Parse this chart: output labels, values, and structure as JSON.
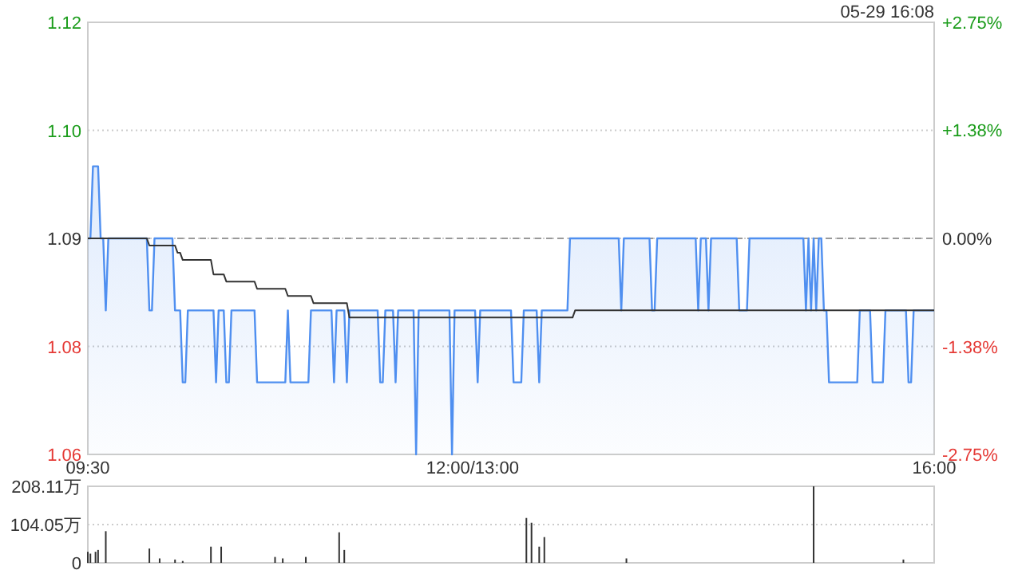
{
  "chart_data": [
    {
      "type": "area",
      "annotations": [
        "05-29 16:08"
      ],
      "categories": [
        "09:30",
        null,
        null,
        null,
        null,
        null,
        null,
        null,
        null,
        null,
        null,
        null,
        null,
        null,
        null,
        null,
        null,
        null,
        null,
        null,
        null,
        null,
        null,
        null,
        null,
        null,
        null,
        null,
        null,
        null,
        null,
        null,
        null,
        null,
        null,
        null,
        null,
        null,
        null,
        null,
        null,
        null,
        null,
        null,
        null,
        null,
        null,
        null,
        null,
        null,
        null,
        null,
        null,
        null,
        null,
        null,
        null,
        null,
        null,
        null,
        null,
        null,
        null,
        null,
        null,
        null,
        null,
        null,
        null,
        null,
        null,
        null,
        null,
        null,
        null,
        null,
        null,
        null,
        null,
        null,
        null,
        null,
        null,
        null,
        null,
        null,
        null,
        null,
        null,
        null,
        null,
        null,
        null,
        null,
        null,
        null,
        null,
        null,
        null,
        null,
        null,
        null,
        null,
        null,
        null,
        null,
        null,
        null,
        null,
        null,
        null,
        null,
        null,
        null,
        null,
        null,
        null,
        null,
        null,
        null,
        null,
        null,
        null,
        null,
        null,
        null,
        null,
        null,
        null,
        null,
        null,
        null,
        null,
        null,
        null,
        null,
        null,
        null,
        null,
        null,
        null,
        null,
        null,
        null,
        null,
        null,
        null,
        null,
        null,
        null,
        "12:00/13:00",
        null,
        null,
        null,
        null,
        null,
        null,
        null,
        null,
        null,
        null,
        null,
        null,
        null,
        null,
        null,
        null,
        null,
        null,
        null,
        null,
        null,
        null,
        null,
        null,
        null,
        null,
        null,
        null,
        null,
        null,
        null,
        null,
        null,
        null,
        null,
        null,
        null,
        null,
        null,
        null,
        null,
        null,
        null,
        null,
        null,
        null,
        null,
        null,
        null,
        null,
        null,
        null,
        null,
        null,
        null,
        null,
        null,
        null,
        null,
        null,
        null,
        null,
        null,
        null,
        null,
        null,
        null,
        null,
        null,
        null,
        null,
        null,
        null,
        null,
        null,
        null,
        null,
        null,
        null,
        null,
        null,
        null,
        null,
        null,
        null,
        null,
        null,
        null,
        null,
        null,
        null,
        null,
        null,
        null,
        null,
        null,
        null,
        null,
        null,
        null,
        null,
        null,
        null,
        null,
        null,
        null,
        null,
        null,
        null,
        null,
        null,
        null,
        null,
        null,
        null,
        null,
        null,
        null,
        null,
        null,
        null,
        null,
        null,
        null,
        null,
        null,
        null,
        null,
        null,
        null,
        null,
        null,
        null,
        null,
        null,
        null,
        null,
        null,
        null,
        null,
        null,
        null,
        null,
        null,
        null,
        null,
        null,
        null,
        null,
        null,
        null,
        null,
        null,
        null,
        null,
        null,
        null,
        null,
        null,
        null,
        null,
        null,
        null,
        null,
        null,
        null,
        null,
        null,
        null,
        null,
        null,
        null,
        null,
        null,
        null,
        null,
        null,
        null,
        null,
        "16:00"
      ],
      "ylim": [
        1.06,
        1.12
      ],
      "yticks": [
        1.12,
        {
          "value": 1.105,
          "label": "1.10"
        },
        1.09,
        {
          "value": 1.075,
          "label": "1.08"
        },
        1.06
      ],
      "y2lim": [
        -2.75,
        2.75
      ],
      "y2ticks": [
        {
          "value": 2.75,
          "label": "+2.75%"
        },
        {
          "value": 1.38,
          "label": "+1.38%"
        },
        {
          "value": 0,
          "label": "0.00%"
        },
        {
          "value": -1.38,
          "label": "-1.38%"
        },
        {
          "value": -2.75,
          "label": "-2.75%"
        }
      ],
      "grid": "y",
      "ref_lines": [
        {
          "axis": "y",
          "value": 1.09,
          "color": "#999999",
          "line_style": "dashed"
        }
      ],
      "series": [
        {
          "color": "#4f8ff0",
          "values": [
            1.09,
            1.09,
            1.1,
            1.1,
            1.1,
            1.09,
            1.09,
            1.08,
            1.09,
            1.09,
            1.09,
            1.09,
            1.09,
            1.09,
            1.09,
            1.09,
            1.09,
            1.09,
            1.09,
            1.09,
            1.09,
            1.09,
            1.09,
            1.09,
            1.08,
            1.08,
            1.09,
            1.09,
            1.09,
            1.09,
            1.09,
            1.09,
            1.09,
            1.09,
            1.08,
            1.08,
            1.08,
            1.07,
            1.07,
            1.08,
            1.08,
            1.08,
            1.08,
            1.08,
            1.08,
            1.08,
            1.08,
            1.08,
            1.08,
            1.08,
            1.07,
            1.08,
            1.08,
            1.08,
            1.07,
            1.07,
            1.08,
            1.08,
            1.08,
            1.08,
            1.08,
            1.08,
            1.08,
            1.08,
            1.08,
            1.08,
            1.07,
            1.07,
            1.07,
            1.07,
            1.07,
            1.07,
            1.07,
            1.07,
            1.07,
            1.07,
            1.07,
            1.07,
            1.08,
            1.07,
            1.07,
            1.07,
            1.07,
            1.07,
            1.07,
            1.07,
            1.07,
            1.08,
            1.08,
            1.08,
            1.08,
            1.08,
            1.08,
            1.08,
            1.08,
            1.08,
            1.07,
            1.08,
            1.08,
            1.08,
            1.08,
            1.07,
            1.08,
            1.08,
            1.08,
            1.08,
            1.08,
            1.08,
            1.08,
            1.08,
            1.08,
            1.08,
            1.08,
            1.08,
            1.07,
            1.07,
            1.08,
            1.08,
            1.08,
            1.08,
            1.07,
            1.08,
            1.08,
            1.08,
            1.08,
            1.08,
            1.08,
            1.08,
            1.06,
            1.08,
            1.08,
            1.08,
            1.08,
            1.08,
            1.08,
            1.08,
            1.08,
            1.08,
            1.08,
            1.08,
            1.08,
            1.08,
            1.06,
            1.08,
            1.08,
            1.08,
            1.08,
            1.08,
            1.08,
            1.08,
            1.08,
            1.08,
            1.07,
            1.08,
            1.08,
            1.08,
            1.08,
            1.08,
            1.08,
            1.08,
            1.08,
            1.08,
            1.08,
            1.08,
            1.08,
            1.08,
            1.07,
            1.07,
            1.07,
            1.07,
            1.08,
            1.08,
            1.08,
            1.08,
            1.08,
            1.08,
            1.07,
            1.08,
            1.08,
            1.08,
            1.08,
            1.08,
            1.08,
            1.08,
            1.08,
            1.08,
            1.08,
            1.08,
            1.09,
            1.09,
            1.09,
            1.09,
            1.09,
            1.09,
            1.09,
            1.09,
            1.09,
            1.09,
            1.09,
            1.09,
            1.09,
            1.09,
            1.09,
            1.09,
            1.09,
            1.09,
            1.09,
            1.09,
            1.08,
            1.09,
            1.09,
            1.09,
            1.09,
            1.09,
            1.09,
            1.09,
            1.09,
            1.09,
            1.09,
            1.09,
            1.08,
            1.08,
            1.09,
            1.09,
            1.09,
            1.09,
            1.09,
            1.09,
            1.09,
            1.09,
            1.09,
            1.09,
            1.09,
            1.09,
            1.09,
            1.09,
            1.09,
            1.09,
            1.08,
            1.09,
            1.09,
            1.09,
            1.08,
            1.09,
            1.09,
            1.09,
            1.09,
            1.09,
            1.09,
            1.09,
            1.09,
            1.09,
            1.09,
            1.09,
            1.08,
            1.08,
            1.08,
            1.08,
            1.09,
            1.09,
            1.09,
            1.09,
            1.09,
            1.09,
            1.09,
            1.09,
            1.09,
            1.09,
            1.09,
            1.09,
            1.09,
            1.09,
            1.09,
            1.09,
            1.09,
            1.09,
            1.09,
            1.09,
            1.09,
            1.09,
            1.08,
            1.09,
            1.08,
            1.09,
            1.08,
            1.09,
            1.09,
            1.08,
            1.08,
            1.07,
            1.07,
            1.07,
            1.07,
            1.07,
            1.07,
            1.07,
            1.07,
            1.07,
            1.07,
            1.07,
            1.07,
            1.08,
            1.08,
            1.08,
            1.08,
            1.08,
            1.07,
            1.07,
            1.07,
            1.07,
            1.07,
            1.08,
            1.08,
            1.08,
            1.08,
            1.08,
            1.08,
            1.08,
            1.08,
            1.08,
            1.07,
            1.07,
            1.08,
            1.08,
            1.08,
            1.08,
            1.08,
            1.08,
            1.08,
            1.08,
            1.08
          ]
        },
        {
          "type": "line",
          "color": "#333333",
          "values": [
            1.09,
            1.09,
            1.09,
            1.09,
            1.09,
            1.09,
            1.09,
            1.09,
            1.09,
            1.09,
            1.09,
            1.09,
            1.09,
            1.09,
            1.09,
            1.09,
            1.09,
            1.09,
            1.09,
            1.09,
            1.09,
            1.09,
            1.09,
            1.09,
            1.089,
            1.089,
            1.089,
            1.089,
            1.089,
            1.089,
            1.089,
            1.089,
            1.089,
            1.089,
            1.089,
            1.088,
            1.088,
            1.087,
            1.087,
            1.087,
            1.087,
            1.087,
            1.087,
            1.087,
            1.087,
            1.087,
            1.087,
            1.087,
            1.087,
            1.085,
            1.085,
            1.085,
            1.085,
            1.085,
            1.084,
            1.084,
            1.084,
            1.084,
            1.084,
            1.084,
            1.084,
            1.084,
            1.084,
            1.084,
            1.084,
            1.084,
            1.083,
            1.083,
            1.083,
            1.083,
            1.083,
            1.083,
            1.083,
            1.083,
            1.083,
            1.083,
            1.083,
            1.083,
            1.082,
            1.082,
            1.082,
            1.082,
            1.082,
            1.082,
            1.082,
            1.082,
            1.082,
            1.082,
            1.081,
            1.081,
            1.081,
            1.081,
            1.081,
            1.081,
            1.081,
            1.081,
            1.081,
            1.081,
            1.081,
            1.081,
            1.081,
            1.081,
            1.079,
            1.079,
            1.079,
            1.079,
            1.079,
            1.079,
            1.079,
            1.079,
            1.079,
            1.079,
            1.079,
            1.079,
            1.079,
            1.079,
            1.079,
            1.079,
            1.079,
            1.079,
            1.079,
            1.079,
            1.079,
            1.079,
            1.079,
            1.079,
            1.079,
            1.079,
            1.079,
            1.079,
            1.079,
            1.079,
            1.079,
            1.079,
            1.079,
            1.079,
            1.079,
            1.079,
            1.079,
            1.079,
            1.079,
            1.079,
            1.079,
            1.079,
            1.079,
            1.079,
            1.079,
            1.079,
            1.079,
            1.079,
            1.079,
            1.079,
            1.079,
            1.079,
            1.079,
            1.079,
            1.079,
            1.079,
            1.079,
            1.079,
            1.079,
            1.079,
            1.079,
            1.079,
            1.079,
            1.079,
            1.079,
            1.079,
            1.079,
            1.079,
            1.079,
            1.079,
            1.079,
            1.079,
            1.079,
            1.079,
            1.079,
            1.079,
            1.079,
            1.079,
            1.079,
            1.079,
            1.079,
            1.079,
            1.079,
            1.079,
            1.079,
            1.079,
            1.079,
            1.079,
            1.08,
            1.08,
            1.08,
            1.08,
            1.08,
            1.08,
            1.08,
            1.08,
            1.08,
            1.08,
            1.08,
            1.08,
            1.08,
            1.08,
            1.08,
            1.08,
            1.08,
            1.08,
            1.08,
            1.08,
            1.08,
            1.08,
            1.08,
            1.08,
            1.08,
            1.08,
            1.08,
            1.08,
            1.08,
            1.08,
            1.08,
            1.08,
            1.08,
            1.08,
            1.08,
            1.08,
            1.08,
            1.08,
            1.08,
            1.08,
            1.08,
            1.08,
            1.08,
            1.08,
            1.08,
            1.08,
            1.08,
            1.08,
            1.08,
            1.08,
            1.08,
            1.08,
            1.08,
            1.08,
            1.08,
            1.08,
            1.08,
            1.08,
            1.08,
            1.08,
            1.08,
            1.08,
            1.08,
            1.08,
            1.08,
            1.08,
            1.08,
            1.08,
            1.08,
            1.08,
            1.08,
            1.08,
            1.08,
            1.08,
            1.08,
            1.08,
            1.08,
            1.08,
            1.08,
            1.08,
            1.08,
            1.08,
            1.08,
            1.08,
            1.08,
            1.08,
            1.08,
            1.08,
            1.08,
            1.08,
            1.08,
            1.08,
            1.08,
            1.08,
            1.08,
            1.08,
            1.08,
            1.08,
            1.08,
            1.08,
            1.08,
            1.08,
            1.08,
            1.08,
            1.08,
            1.08,
            1.08,
            1.08,
            1.08,
            1.08,
            1.08,
            1.08,
            1.08,
            1.08,
            1.08,
            1.08,
            1.08,
            1.08,
            1.08,
            1.08,
            1.08,
            1.08,
            1.08,
            1.08,
            1.08,
            1.08,
            1.08,
            1.08,
            1.08,
            1.08,
            1.08,
            1.08,
            1.08,
            1.08,
            1.08,
            1.08,
            1.08,
            1.08,
            1.08,
            1.08,
            1.08
          ]
        }
      ]
    },
    {
      "type": "bar",
      "tick_labels": "y",
      "categories": [
        null,
        null,
        null,
        null,
        null,
        null,
        null,
        null,
        null,
        null,
        null,
        null,
        null,
        null,
        null,
        null,
        null,
        null,
        null,
        null,
        null,
        null,
        null,
        null,
        null,
        null,
        null,
        null,
        null,
        null,
        null,
        null,
        null,
        null,
        null,
        null,
        null,
        null,
        null,
        null,
        null,
        null,
        null,
        null,
        null,
        null,
        null,
        null,
        null,
        null,
        null,
        null,
        null,
        null,
        null,
        null,
        null,
        null,
        null,
        null,
        null,
        null,
        null,
        null,
        null,
        null,
        null,
        null,
        null,
        null,
        null,
        null,
        null,
        null,
        null,
        null,
        null,
        null,
        null,
        null,
        null,
        null,
        null,
        null,
        null,
        null,
        null,
        null,
        null,
        null,
        null,
        null,
        null,
        null,
        null,
        null,
        null,
        null,
        null,
        null,
        null,
        null,
        null,
        null,
        null,
        null,
        null,
        null,
        null,
        null,
        null,
        null,
        null,
        null,
        null,
        null,
        null,
        null,
        null,
        null,
        null,
        null,
        null,
        null,
        null,
        null,
        null,
        null,
        null,
        null,
        null,
        null,
        null,
        null,
        null,
        null,
        null,
        null,
        null,
        null,
        null,
        null,
        null,
        null,
        null,
        null,
        null,
        null,
        null,
        null,
        null,
        null,
        null,
        null,
        null,
        null,
        null,
        null,
        null,
        null,
        null,
        null,
        null,
        null,
        null,
        null,
        null,
        null,
        null,
        null,
        null,
        null,
        null,
        null,
        null,
        null,
        null,
        null,
        null,
        null,
        null,
        null,
        null,
        null,
        null,
        null,
        null,
        null,
        null,
        null,
        null,
        null,
        null,
        null,
        null,
        null,
        null,
        null,
        null,
        null,
        null,
        null,
        null,
        null,
        null,
        null,
        null,
        null,
        null,
        null,
        null,
        null,
        null,
        null,
        null,
        null,
        null,
        null,
        null,
        null,
        null,
        null,
        null,
        null,
        null,
        null,
        null,
        null,
        null,
        null,
        null,
        null,
        null,
        null,
        null,
        null,
        null,
        null,
        null,
        null,
        null,
        null,
        null,
        null,
        null,
        null,
        null,
        null,
        null,
        null,
        null,
        null,
        null,
        null,
        null,
        null,
        null,
        null,
        null,
        null,
        null,
        null,
        null,
        null,
        null,
        null,
        null,
        null,
        null,
        null,
        null,
        null,
        null,
        null,
        null,
        null,
        null,
        null,
        null,
        null,
        null,
        null,
        null,
        null,
        null,
        null,
        null,
        null,
        null,
        null,
        null,
        null,
        null,
        null,
        null,
        null,
        null,
        null,
        null,
        null,
        null,
        null,
        null,
        null,
        null,
        null,
        null,
        null,
        null,
        null,
        null,
        null,
        null,
        null,
        null,
        null,
        null,
        null,
        null,
        null,
        null,
        null,
        null,
        null,
        null,
        null,
        null,
        null,
        null,
        null,
        null
      ],
      "ylim": [
        0,
        208.11
      ],
      "yticks": [
        0,
        {
          "value": 104.05,
          "label": "104.05万"
        },
        {
          "value": 208.11,
          "label": "208.11万"
        }
      ],
      "grid": "y",
      "series": [
        {
          "color": "#333333",
          "values": [
            30,
            25,
            null,
            30,
            35,
            null,
            null,
            86,
            null,
            null,
            null,
            null,
            null,
            null,
            null,
            null,
            null,
            null,
            null,
            null,
            null,
            null,
            null,
            null,
            39,
            null,
            null,
            null,
            12,
            null,
            null,
            null,
            null,
            null,
            9,
            null,
            null,
            5,
            null,
            null,
            null,
            null,
            null,
            null,
            null,
            null,
            null,
            null,
            44,
            null,
            null,
            null,
            44,
            null,
            null,
            null,
            null,
            null,
            null,
            null,
            null,
            null,
            null,
            null,
            null,
            null,
            null,
            null,
            null,
            null,
            null,
            null,
            null,
            16,
            null,
            null,
            12,
            null,
            null,
            null,
            null,
            null,
            null,
            null,
            null,
            16,
            null,
            null,
            null,
            null,
            null,
            null,
            null,
            null,
            null,
            null,
            null,
            null,
            83,
            null,
            35,
            null,
            null,
            null,
            null,
            null,
            null,
            null,
            null,
            null,
            null,
            null,
            null,
            null,
            null,
            null,
            null,
            null,
            null,
            null,
            null,
            null,
            null,
            null,
            null,
            null,
            null,
            null,
            null,
            null,
            null,
            null,
            null,
            null,
            null,
            null,
            null,
            null,
            null,
            null,
            null,
            null,
            null,
            null,
            null,
            null,
            null,
            null,
            null,
            null,
            null,
            null,
            null,
            null,
            null,
            null,
            null,
            null,
            null,
            null,
            null,
            null,
            null,
            null,
            null,
            null,
            null,
            null,
            null,
            null,
            null,
            122,
            null,
            109,
            null,
            null,
            44,
            null,
            70,
            null,
            null,
            null,
            null,
            null,
            null,
            null,
            null,
            null,
            null,
            null,
            null,
            null,
            null,
            null,
            null,
            null,
            null,
            null,
            null,
            null,
            null,
            null,
            null,
            null,
            null,
            null,
            null,
            null,
            null,
            null,
            12,
            null,
            null,
            null,
            null,
            null,
            null,
            null,
            null,
            null,
            null,
            null,
            null,
            null,
            null,
            null,
            null,
            null,
            null,
            null,
            null,
            null,
            null,
            null,
            null,
            null,
            null,
            null,
            null,
            null,
            null,
            null,
            null,
            null,
            null,
            null,
            null,
            null,
            null,
            null,
            null,
            null,
            null,
            null,
            null,
            null,
            null,
            null,
            null,
            null,
            null,
            null,
            null,
            null,
            null,
            null,
            null,
            null,
            null,
            null,
            null,
            null,
            null,
            null,
            null,
            null,
            null,
            null,
            null,
            null,
            null,
            null,
            null,
            208,
            null,
            null,
            null,
            null,
            null,
            null,
            null,
            null,
            null,
            null,
            null,
            null,
            null,
            null,
            null,
            null,
            null,
            null,
            null,
            null,
            null,
            null,
            null,
            null,
            null,
            null,
            null,
            null,
            null,
            null,
            null,
            null,
            null,
            null,
            9,
            null,
            null,
            null,
            null,
            null,
            null,
            null,
            null,
            null,
            null,
            null,
            null
          ]
        }
      ]
    }
  ]
}
